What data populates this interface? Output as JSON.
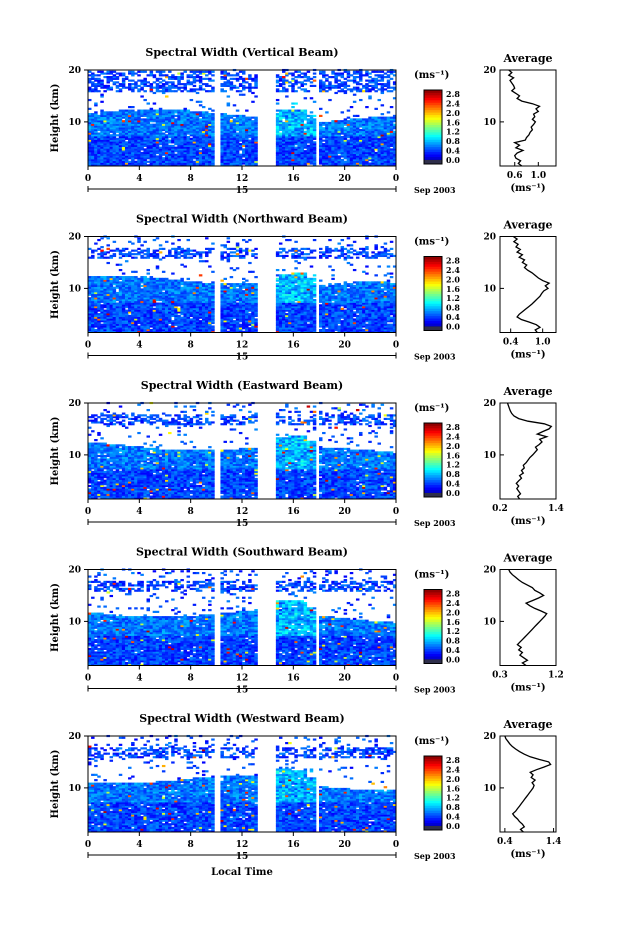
{
  "chart_data": [
    {
      "type": "heatmap",
      "title": "Spectral Width (Vertical Beam)",
      "ylabel": "Height (km)",
      "xlim": [
        0,
        24
      ],
      "ylim": [
        1.5,
        20
      ],
      "x_ticks": [
        "0",
        "4",
        "8",
        "12",
        "16",
        "20",
        "0"
      ],
      "y_ticks": [
        "20",
        "10"
      ],
      "date_marker": "15",
      "date_label": "Sep 2003",
      "gaps_hours": [
        [
          10.0,
          10.2
        ],
        [
          13.3,
          14.5
        ],
        [
          17.8,
          18.0
        ]
      ],
      "cbar": {
        "unit": "(ms⁻¹)",
        "ticks": [
          "2.8",
          "2.4",
          "2.0",
          "1.6",
          "1.2",
          "0.8",
          "0.4",
          "0.0"
        ],
        "max": 3.0
      },
      "avg": {
        "title": "Average",
        "xlabel": "(ms⁻¹)",
        "x_ticks": [
          "0.6",
          "1.0"
        ],
        "xlim": [
          0.35,
          1.3
        ],
        "y_ticks": [
          "20",
          "10"
        ],
        "profile": [
          [
            1.5,
            0.72
          ],
          [
            2,
            0.66
          ],
          [
            2.5,
            0.7
          ],
          [
            3,
            0.62
          ],
          [
            3.5,
            0.6
          ],
          [
            4,
            0.64
          ],
          [
            4.5,
            0.74
          ],
          [
            5,
            0.62
          ],
          [
            5.5,
            0.68
          ],
          [
            6,
            0.6
          ],
          [
            6.5,
            0.78
          ],
          [
            7,
            0.8
          ],
          [
            7.5,
            0.84
          ],
          [
            8,
            0.86
          ],
          [
            8.5,
            0.9
          ],
          [
            9,
            0.88
          ],
          [
            9.5,
            0.92
          ],
          [
            10,
            0.95
          ],
          [
            10.5,
            0.9
          ],
          [
            11,
            0.94
          ],
          [
            11.5,
            0.92
          ],
          [
            12,
            1.0
          ],
          [
            12.5,
            0.96
          ],
          [
            13,
            1.02
          ],
          [
            13.5,
            0.9
          ],
          [
            14,
            0.72
          ],
          [
            14.5,
            0.64
          ],
          [
            15,
            0.68
          ],
          [
            15.5,
            0.62
          ],
          [
            16,
            0.55
          ],
          [
            16.5,
            0.6
          ],
          [
            17,
            0.58
          ],
          [
            17.5,
            0.55
          ],
          [
            18,
            0.52
          ],
          [
            18.5,
            0.58
          ],
          [
            19,
            0.5
          ],
          [
            19.5,
            0.55
          ],
          [
            20,
            0.5
          ]
        ]
      }
    },
    {
      "type": "heatmap",
      "title": "Spectral Width (Northward Beam)",
      "ylabel": "Height (km)",
      "xlim": [
        0,
        24
      ],
      "ylim": [
        1.5,
        20
      ],
      "x_ticks": [
        "0",
        "4",
        "8",
        "12",
        "16",
        "20",
        "0"
      ],
      "y_ticks": [
        "20",
        "10"
      ],
      "date_marker": "15",
      "date_label": "Sep 2003",
      "gaps_hours": [
        [
          10.0,
          10.2
        ],
        [
          13.3,
          14.5
        ],
        [
          17.8,
          18.0
        ]
      ],
      "cbar": {
        "unit": "(ms⁻¹)",
        "ticks": [
          "2.8",
          "2.4",
          "2.0",
          "1.6",
          "1.2",
          "0.8",
          "0.4",
          "0.0"
        ],
        "max": 3.0
      },
      "avg": {
        "title": "Average",
        "xlabel": "(ms⁻¹)",
        "x_ticks": [
          "0.4",
          "1.0"
        ],
        "xlim": [
          0.2,
          1.25
        ],
        "y_ticks": [
          "20",
          "10"
        ],
        "profile": [
          [
            1.5,
            0.9
          ],
          [
            2,
            0.86
          ],
          [
            2.5,
            0.95
          ],
          [
            3,
            0.88
          ],
          [
            3.5,
            0.75
          ],
          [
            4,
            0.6
          ],
          [
            4.5,
            0.52
          ],
          [
            5,
            0.56
          ],
          [
            5.5,
            0.62
          ],
          [
            6,
            0.68
          ],
          [
            6.5,
            0.74
          ],
          [
            7,
            0.8
          ],
          [
            7.5,
            0.85
          ],
          [
            8,
            0.9
          ],
          [
            8.5,
            0.95
          ],
          [
            9,
            0.98
          ],
          [
            9.5,
            1.02
          ],
          [
            10,
            1.1
          ],
          [
            10.5,
            1.05
          ],
          [
            11,
            1.12
          ],
          [
            11.5,
            1.0
          ],
          [
            12,
            0.92
          ],
          [
            12.5,
            0.86
          ],
          [
            13,
            0.8
          ],
          [
            13.5,
            0.72
          ],
          [
            14,
            0.66
          ],
          [
            14.5,
            0.7
          ],
          [
            15,
            0.62
          ],
          [
            15.5,
            0.66
          ],
          [
            16,
            0.56
          ],
          [
            16.5,
            0.62
          ],
          [
            17,
            0.52
          ],
          [
            17.5,
            0.58
          ],
          [
            18,
            0.5
          ],
          [
            18.5,
            0.54
          ],
          [
            19,
            0.46
          ],
          [
            19.5,
            0.52
          ],
          [
            20,
            0.45
          ]
        ]
      }
    },
    {
      "type": "heatmap",
      "title": "Spectral Width (Eastward Beam)",
      "ylabel": "Height (km)",
      "xlim": [
        0,
        24
      ],
      "ylim": [
        1.5,
        20
      ],
      "x_ticks": [
        "0",
        "4",
        "8",
        "12",
        "16",
        "20",
        "0"
      ],
      "y_ticks": [
        "20",
        "10"
      ],
      "date_marker": "15",
      "date_label": "Sep 2003",
      "gaps_hours": [
        [
          10.0,
          10.2
        ],
        [
          13.3,
          14.5
        ],
        [
          17.8,
          18.0
        ]
      ],
      "cbar": {
        "unit": "(ms⁻¹)",
        "ticks": [
          "2.8",
          "2.4",
          "2.0",
          "1.6",
          "1.2",
          "0.8",
          "0.4",
          "0.0"
        ],
        "max": 3.0
      },
      "avg": {
        "title": "Average",
        "xlabel": "(ms⁻¹)",
        "x_ticks": [
          "0.2",
          "1.4"
        ],
        "xlim": [
          0.2,
          1.4
        ],
        "y_ticks": [
          "20",
          "10"
        ],
        "profile": [
          [
            1.5,
            0.62
          ],
          [
            2,
            0.58
          ],
          [
            2.5,
            0.64
          ],
          [
            3,
            0.6
          ],
          [
            3.5,
            0.56
          ],
          [
            4,
            0.6
          ],
          [
            4.5,
            0.55
          ],
          [
            5,
            0.6
          ],
          [
            5.5,
            0.66
          ],
          [
            6,
            0.62
          ],
          [
            6.5,
            0.7
          ],
          [
            7,
            0.66
          ],
          [
            7.5,
            0.72
          ],
          [
            8,
            0.7
          ],
          [
            8.5,
            0.76
          ],
          [
            9,
            0.8
          ],
          [
            9.5,
            0.84
          ],
          [
            10,
            0.9
          ],
          [
            10.5,
            0.95
          ],
          [
            11,
            1.0
          ],
          [
            11.5,
            0.96
          ],
          [
            12,
            1.04
          ],
          [
            12.5,
            1.1
          ],
          [
            13,
            1.05
          ],
          [
            13.5,
            1.2
          ],
          [
            14,
            1.0
          ],
          [
            14.5,
            1.12
          ],
          [
            15,
            1.25
          ],
          [
            15.5,
            1.3
          ],
          [
            16,
            1.15
          ],
          [
            16.5,
            0.8
          ],
          [
            17,
            0.6
          ],
          [
            17.5,
            0.5
          ],
          [
            18,
            0.45
          ],
          [
            18.5,
            0.42
          ],
          [
            19,
            0.4
          ],
          [
            19.5,
            0.38
          ],
          [
            20,
            0.36
          ]
        ]
      }
    },
    {
      "type": "heatmap",
      "title": "Spectral Width (Southward Beam)",
      "ylabel": "Height (km)",
      "xlim": [
        0,
        24
      ],
      "ylim": [
        1.5,
        20
      ],
      "x_ticks": [
        "0",
        "4",
        "8",
        "12",
        "16",
        "20",
        "0"
      ],
      "y_ticks": [
        "20",
        "10"
      ],
      "date_marker": "15",
      "date_label": "Sep 2003",
      "gaps_hours": [
        [
          10.0,
          10.2
        ],
        [
          13.3,
          14.5
        ],
        [
          17.8,
          18.0
        ]
      ],
      "cbar": {
        "unit": "(ms⁻¹)",
        "ticks": [
          "2.8",
          "2.4",
          "2.0",
          "1.6",
          "1.2",
          "0.8",
          "0.4",
          "0.0"
        ],
        "max": 3.0
      },
      "avg": {
        "title": "Average",
        "xlabel": "(ms⁻¹)",
        "x_ticks": [
          "0.3",
          "1.2"
        ],
        "xlim": [
          0.3,
          1.2
        ],
        "y_ticks": [
          "20",
          "10"
        ],
        "profile": [
          [
            1.5,
            0.72
          ],
          [
            2,
            0.66
          ],
          [
            2.5,
            0.74
          ],
          [
            3,
            0.68
          ],
          [
            3.5,
            0.62
          ],
          [
            4,
            0.66
          ],
          [
            4.5,
            0.6
          ],
          [
            5,
            0.64
          ],
          [
            5.5,
            0.58
          ],
          [
            6,
            0.62
          ],
          [
            6.5,
            0.66
          ],
          [
            7,
            0.7
          ],
          [
            7.5,
            0.74
          ],
          [
            8,
            0.78
          ],
          [
            8.5,
            0.82
          ],
          [
            9,
            0.86
          ],
          [
            9.5,
            0.9
          ],
          [
            10,
            0.94
          ],
          [
            10.5,
            0.98
          ],
          [
            11,
            1.02
          ],
          [
            11.5,
            1.05
          ],
          [
            12,
            0.96
          ],
          [
            12.5,
            0.86
          ],
          [
            13,
            0.78
          ],
          [
            13.5,
            0.72
          ],
          [
            14,
            0.82
          ],
          [
            14.5,
            0.92
          ],
          [
            15,
            1.0
          ],
          [
            15.5,
            0.94
          ],
          [
            16,
            0.86
          ],
          [
            16.5,
            0.82
          ],
          [
            17,
            0.74
          ],
          [
            17.5,
            0.66
          ],
          [
            18,
            0.6
          ],
          [
            18.5,
            0.55
          ],
          [
            19,
            0.5
          ],
          [
            19.5,
            0.46
          ],
          [
            20,
            0.44
          ]
        ]
      }
    },
    {
      "type": "heatmap",
      "title": "Spectral Width (Westward Beam)",
      "ylabel": "Height (km)",
      "xlim": [
        0,
        24
      ],
      "ylim": [
        1.5,
        20
      ],
      "x_ticks": [
        "0",
        "4",
        "8",
        "12",
        "16",
        "20",
        "0"
      ],
      "y_ticks": [
        "20",
        "10"
      ],
      "date_marker": "15",
      "date_label": "Sep 2003",
      "xlabel": "Local Time",
      "gaps_hours": [
        [
          10.0,
          10.2
        ],
        [
          13.3,
          14.5
        ],
        [
          17.8,
          18.0
        ]
      ],
      "cbar": {
        "unit": "(ms⁻¹)",
        "ticks": [
          "2.8",
          "2.4",
          "2.0",
          "1.6",
          "1.2",
          "0.8",
          "0.4",
          "0.0"
        ],
        "max": 3.0
      },
      "avg": {
        "title": "Average",
        "xlabel": "(ms⁻¹)",
        "x_ticks": [
          "0.4",
          "1.4"
        ],
        "xlim": [
          0.3,
          1.45
        ],
        "y_ticks": [
          "20",
          "10"
        ],
        "profile": [
          [
            1.5,
            0.78
          ],
          [
            2,
            0.72
          ],
          [
            2.5,
            0.8
          ],
          [
            3,
            0.76
          ],
          [
            3.5,
            0.7
          ],
          [
            4,
            0.66
          ],
          [
            4.5,
            0.6
          ],
          [
            5,
            0.56
          ],
          [
            5.5,
            0.62
          ],
          [
            6,
            0.66
          ],
          [
            6.5,
            0.7
          ],
          [
            7,
            0.74
          ],
          [
            7.5,
            0.78
          ],
          [
            8,
            0.82
          ],
          [
            8.5,
            0.86
          ],
          [
            9,
            0.9
          ],
          [
            9.5,
            0.94
          ],
          [
            10,
            0.98
          ],
          [
            10.5,
            1.0
          ],
          [
            11,
            0.96
          ],
          [
            11.5,
            1.02
          ],
          [
            12,
            0.94
          ],
          [
            12.5,
            0.98
          ],
          [
            13,
            0.92
          ],
          [
            13.5,
            1.05
          ],
          [
            14,
            1.2
          ],
          [
            14.5,
            1.34
          ],
          [
            15,
            1.3
          ],
          [
            15.5,
            1.1
          ],
          [
            16,
            0.92
          ],
          [
            16.5,
            0.8
          ],
          [
            17,
            0.7
          ],
          [
            17.5,
            0.62
          ],
          [
            18,
            0.55
          ],
          [
            18.5,
            0.5
          ],
          [
            19,
            0.46
          ],
          [
            19.5,
            0.42
          ],
          [
            20,
            0.4
          ]
        ]
      }
    }
  ]
}
